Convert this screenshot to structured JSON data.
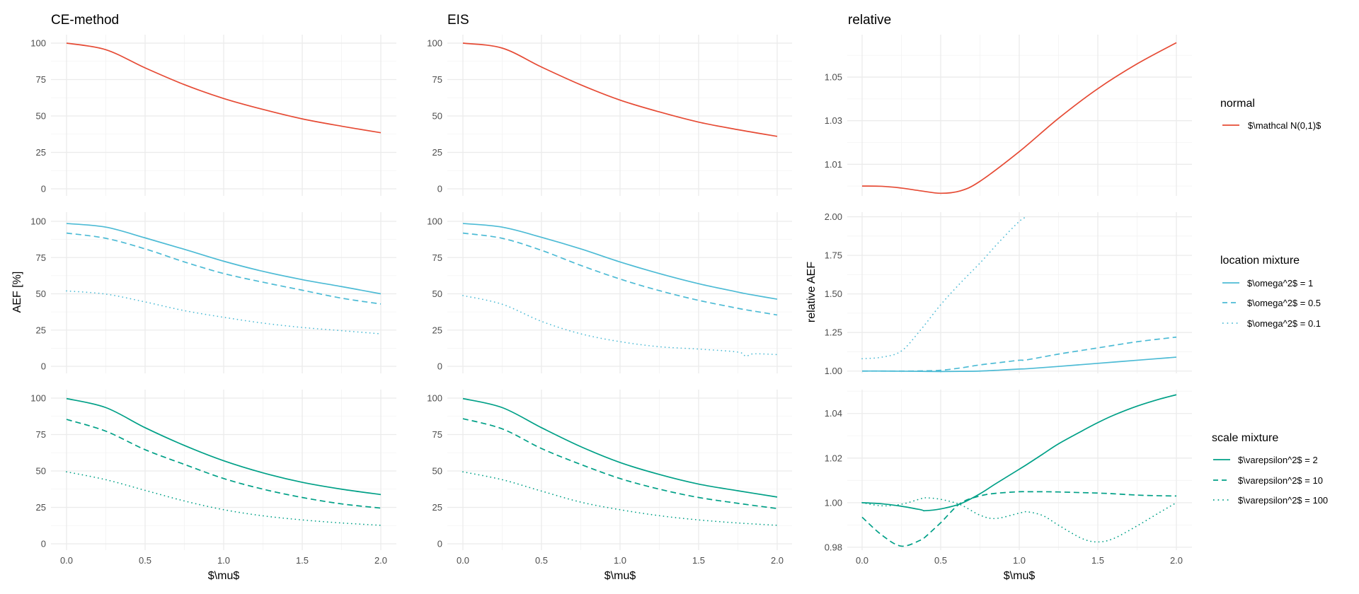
{
  "colors": {
    "normal": "#E64B35",
    "location": "#4DBBD5",
    "scale": "#00A087"
  },
  "column_titles": [
    "CE-method",
    "EIS",
    "relative"
  ],
  "ylabel_left": "AEF [%]",
  "ylabel_right": "relative AEF",
  "xlabel": "$\\mu$",
  "legends": [
    {
      "title": "normal",
      "color_key": "normal",
      "entries": [
        {
          "label": "$\\mathcal N(0,1)$",
          "linetype": "solid"
        }
      ]
    },
    {
      "title": "location mixture",
      "color_key": "location",
      "entries": [
        {
          "label": "$\\omega^2$ = 1",
          "linetype": "solid"
        },
        {
          "label": "$\\omega^2$ = 0.5",
          "linetype": "dashed"
        },
        {
          "label": "$\\omega^2$ = 0.1",
          "linetype": "dotted"
        }
      ]
    },
    {
      "title": "scale mixture",
      "color_key": "scale",
      "entries": [
        {
          "label": "$\\varepsilon^2$ = 2",
          "linetype": "solid"
        },
        {
          "label": "$\\varepsilon^2$ = 10",
          "linetype": "dashed"
        },
        {
          "label": "$\\varepsilon^2$ = 100",
          "linetype": "dotted"
        }
      ]
    }
  ],
  "chart_data": [
    {
      "type": "line",
      "title": "CE-method",
      "row": "normal",
      "xlabel": "",
      "ylabel": "",
      "xlim": [
        0,
        2
      ],
      "ylim": [
        0,
        100
      ],
      "xticks": [
        "0.0",
        "0.5",
        "1.0",
        "1.5",
        "2.0"
      ],
      "yticks": [
        "0",
        "25",
        "50",
        "75",
        "100"
      ],
      "ytick_values": [
        0,
        25,
        50,
        75,
        100
      ],
      "x": [
        0,
        0.25,
        0.5,
        0.75,
        1.0,
        1.25,
        1.5,
        1.75,
        2.0
      ],
      "series": [
        {
          "name": "$\\mathcal N(0,1)$",
          "linetype": "solid",
          "values": [
            100,
            95.5,
            83,
            71.5,
            62,
            54.5,
            48,
            43,
            38.5
          ]
        }
      ]
    },
    {
      "type": "line",
      "title": "EIS",
      "row": "normal",
      "xlim": [
        0,
        2
      ],
      "ylim": [
        0,
        100
      ],
      "xticks": [
        "0.0",
        "0.5",
        "1.0",
        "1.5",
        "2.0"
      ],
      "yticks": [
        "0",
        "25",
        "50",
        "75",
        "100"
      ],
      "ytick_values": [
        0,
        25,
        50,
        75,
        100
      ],
      "x": [
        0,
        0.25,
        0.5,
        0.75,
        1.0,
        1.25,
        1.5,
        1.75,
        2.0
      ],
      "series": [
        {
          "name": "$\\mathcal N(0,1)$",
          "linetype": "solid",
          "values": [
            100,
            96.6,
            83.6,
            71.4,
            60.9,
            52.8,
            45.8,
            40.6,
            36
          ]
        }
      ]
    },
    {
      "type": "line",
      "title": "relative",
      "row": "normal",
      "xlim": [
        0,
        2
      ],
      "ylim": [
        0.9955,
        1.0695
      ],
      "xticks": [
        "0.0",
        "0.5",
        "1.0",
        "1.5",
        "2.0"
      ],
      "yticks": [
        "1.01",
        "1.03",
        "1.05"
      ],
      "ytick_values": [
        1.01,
        1.03,
        1.05
      ],
      "minor_values": [
        1.0,
        1.02,
        1.04,
        1.06
      ],
      "x": [
        0,
        0.125,
        0.25,
        0.375,
        0.5,
        0.625,
        0.75,
        1.0,
        1.25,
        1.5,
        1.75,
        2.0
      ],
      "series": [
        {
          "name": "$\\mathcal N(0,1)$",
          "linetype": "solid",
          "values": [
            1.0,
            0.9999,
            0.9991,
            0.9978,
            0.9967,
            0.9978,
            1.0022,
            1.0158,
            1.0311,
            1.0447,
            1.0561,
            1.0658
          ]
        }
      ]
    },
    {
      "type": "line",
      "title": "CE-method",
      "row": "location mixture",
      "ylabel": "AEF [%]",
      "xlim": [
        0,
        2
      ],
      "ylim": [
        0,
        100
      ],
      "xticks": [
        "0.0",
        "0.5",
        "1.0",
        "1.5",
        "2.0"
      ],
      "yticks": [
        "0",
        "25",
        "50",
        "75",
        "100"
      ],
      "ytick_values": [
        0,
        25,
        50,
        75,
        100
      ],
      "x": [
        0,
        0.25,
        0.5,
        0.75,
        1.0,
        1.25,
        1.5,
        1.75,
        2.0
      ],
      "series": [
        {
          "name": "$\\omega^2$ = 1",
          "linetype": "solid",
          "values": [
            98.5,
            96,
            88.6,
            80.7,
            72.5,
            65.5,
            59.8,
            55,
            50
          ]
        },
        {
          "name": "$\\omega^2$ = 0.5",
          "linetype": "dashed",
          "values": [
            91.9,
            88.3,
            81,
            72,
            64,
            58,
            52.5,
            47,
            43
          ]
        },
        {
          "name": "$\\omega^2$ = 0.1",
          "linetype": "dotted",
          "values": [
            52,
            49.8,
            44.4,
            38.4,
            33.8,
            29.8,
            26.8,
            24.6,
            22.4
          ]
        }
      ]
    },
    {
      "type": "line",
      "title": "EIS",
      "row": "location mixture",
      "xlim": [
        0,
        2
      ],
      "ylim": [
        0,
        100
      ],
      "xticks": [
        "0.0",
        "0.5",
        "1.0",
        "1.5",
        "2.0"
      ],
      "yticks": [
        "0",
        "25",
        "50",
        "75",
        "100"
      ],
      "ytick_values": [
        0,
        25,
        50,
        75,
        100
      ],
      "x": [
        0,
        0.25,
        0.5,
        0.75,
        1.0,
        1.25,
        1.5,
        1.75,
        1.8,
        1.85,
        2.0
      ],
      "series": [
        {
          "name": "$\\omega^2$ = 1",
          "linetype": "solid",
          "values": [
            98.5,
            96,
            89,
            81,
            72,
            64,
            57,
            51.2,
            50.1,
            49.1,
            46.3
          ]
        },
        {
          "name": "$\\omega^2$ = 0.5",
          "linetype": "dashed",
          "values": [
            91.9,
            88.3,
            80,
            69.6,
            60.2,
            52.2,
            45.5,
            40,
            39,
            38.1,
            35.4
          ]
        },
        {
          "name": "$\\omega^2$ = 0.1",
          "linetype": "dotted",
          "values": [
            48.8,
            42.8,
            31,
            22.4,
            17,
            13.5,
            11.9,
            9.8,
            7,
            8.6,
            8.1
          ]
        }
      ]
    },
    {
      "type": "line",
      "title": "relative",
      "row": "location mixture",
      "ylabel": "relative AEF",
      "xlim": [
        0,
        2
      ],
      "ylim": [
        0.985,
        2.03
      ],
      "xticks": [
        "0.0",
        "0.5",
        "1.0",
        "1.5",
        "2.0"
      ],
      "yticks": [
        "1.00",
        "1.25",
        "1.50",
        "1.75",
        "2.00"
      ],
      "ytick_values": [
        1.0,
        1.25,
        1.5,
        1.75,
        2.0
      ],
      "minor_values": [
        1.125,
        1.375,
        1.625,
        1.875
      ],
      "x": [
        0,
        0.125,
        0.25,
        0.375,
        0.5,
        0.625,
        0.75,
        0.875,
        1.0,
        1.05,
        1.25,
        1.5,
        1.75,
        2.0
      ],
      "series": [
        {
          "name": "$\\omega^2$ = 1",
          "linetype": "solid",
          "values": [
            1.0,
            1.0,
            0.999,
            0.998,
            0.997,
            0.998,
            1.0,
            1.006,
            1.013,
            1.015,
            1.03,
            1.05,
            1.07,
            1.09
          ]
        },
        {
          "name": "$\\omega^2$ = 0.5",
          "linetype": "dashed",
          "values": [
            1.0,
            1.0,
            1.0,
            1.001,
            1.005,
            1.02,
            1.04,
            1.055,
            1.07,
            1.073,
            1.11,
            1.15,
            1.19,
            1.22
          ]
        },
        {
          "name": "$\\omega^2$ = 0.1",
          "linetype": "dotted",
          "values": [
            1.08,
            1.09,
            1.13,
            1.27,
            1.43,
            1.57,
            1.7,
            1.84,
            1.97,
            2.0,
            null,
            null,
            null,
            null
          ]
        }
      ]
    },
    {
      "type": "line",
      "title": "CE-method",
      "row": "scale mixture",
      "xlabel": "$\\mu$",
      "xlim": [
        0,
        2
      ],
      "ylim": [
        0,
        100
      ],
      "xticks": [
        "0.0",
        "0.5",
        "1.0",
        "1.5",
        "2.0"
      ],
      "yticks": [
        "0",
        "25",
        "50",
        "75",
        "100"
      ],
      "ytick_values": [
        0,
        25,
        50,
        75,
        100
      ],
      "x": [
        0,
        0.25,
        0.5,
        0.75,
        1.0,
        1.25,
        1.5,
        1.75,
        2.0
      ],
      "series": [
        {
          "name": "$\\varepsilon^2$ = 2",
          "linetype": "solid",
          "values": [
            99.7,
            93.5,
            79.7,
            67.5,
            57,
            48.7,
            42.2,
            37.5,
            33.8
          ]
        },
        {
          "name": "$\\varepsilon^2$ = 10",
          "linetype": "dashed",
          "values": [
            85.4,
            77.3,
            64.6,
            54.5,
            44.8,
            37.5,
            31.8,
            27.4,
            24.5
          ]
        },
        {
          "name": "$\\varepsilon^2$ = 100",
          "linetype": "dotted",
          "values": [
            49.4,
            44,
            36.7,
            29.4,
            23.4,
            19.2,
            16.4,
            14.3,
            12.7
          ]
        }
      ]
    },
    {
      "type": "line",
      "title": "EIS",
      "row": "scale mixture",
      "xlabel": "$\\mu$",
      "xlim": [
        0,
        2
      ],
      "ylim": [
        0,
        100
      ],
      "xticks": [
        "0.0",
        "0.5",
        "1.0",
        "1.5",
        "2.0"
      ],
      "yticks": [
        "0",
        "25",
        "50",
        "75",
        "100"
      ],
      "ytick_values": [
        0,
        25,
        50,
        75,
        100
      ],
      "x": [
        0,
        0.25,
        0.5,
        0.75,
        1.0,
        1.25,
        1.5,
        1.75,
        2.0
      ],
      "series": [
        {
          "name": "$\\varepsilon^2$ = 2",
          "linetype": "solid",
          "values": [
            99.7,
            93.5,
            79.7,
            66.7,
            55.8,
            47.6,
            41,
            36.4,
            32.1
          ]
        },
        {
          "name": "$\\varepsilon^2$ = 10",
          "linetype": "dashed",
          "values": [
            85.9,
            78.9,
            65.4,
            54.5,
            44.8,
            37.5,
            31.8,
            27.8,
            24.2
          ]
        },
        {
          "name": "$\\varepsilon^2$ = 100",
          "linetype": "dotted",
          "values": [
            49.4,
            44,
            36.2,
            28.6,
            23.4,
            19.3,
            16.4,
            14.3,
            12.7
          ]
        }
      ]
    },
    {
      "type": "line",
      "title": "relative",
      "row": "scale mixture",
      "xlabel": "$\\mu$",
      "xlim": [
        0,
        2
      ],
      "ylim": [
        0.9787,
        1.0507
      ],
      "xticks": [
        "0.0",
        "0.5",
        "1.0",
        "1.5",
        "2.0"
      ],
      "yticks": [
        "0.98",
        "1.00",
        "1.02",
        "1.04"
      ],
      "ytick_values": [
        0.98,
        1.0,
        1.02,
        1.04
      ],
      "minor_values": [
        0.99,
        1.01,
        1.03,
        1.05
      ],
      "x": [
        0,
        0.125,
        0.25,
        0.375,
        0.4,
        0.5,
        0.625,
        0.75,
        0.85,
        1.0,
        1.05,
        1.15,
        1.25,
        1.4,
        1.5,
        1.6,
        1.75,
        1.9,
        2.0
      ],
      "series": [
        {
          "name": "$\\varepsilon^2$ = 2",
          "linetype": "solid",
          "values": [
            1.0,
            0.9995,
            0.9984,
            0.9968,
            0.9964,
            0.9972,
            0.9995,
            1.004,
            1.0085,
            1.015,
            1.0172,
            1.0218,
            1.0264,
            1.0322,
            1.0359,
            1.0392,
            1.0433,
            1.0466,
            1.0484
          ]
        },
        {
          "name": "$\\varepsilon^2$ = 10",
          "linetype": "dashed",
          "values": [
            0.9935,
            0.9855,
            0.9805,
            0.9833,
            0.9845,
            0.991,
            0.9997,
            1.003,
            1.0042,
            1.0049,
            1.0049,
            1.0049,
            1.0048,
            1.0045,
            1.0043,
            1.004,
            1.0034,
            1.0031,
            1.003
          ]
        },
        {
          "name": "$\\varepsilon^2$ = 100",
          "linetype": "dotted",
          "values": [
            1.0,
            0.9986,
            0.9993,
            1.0018,
            1.0022,
            1.0015,
            0.9991,
            0.9944,
            0.9929,
            0.9953,
            0.9959,
            0.9942,
            0.9899,
            0.9839,
            0.9824,
            0.9839,
            0.9896,
            0.9959,
            1.0
          ]
        }
      ]
    }
  ]
}
